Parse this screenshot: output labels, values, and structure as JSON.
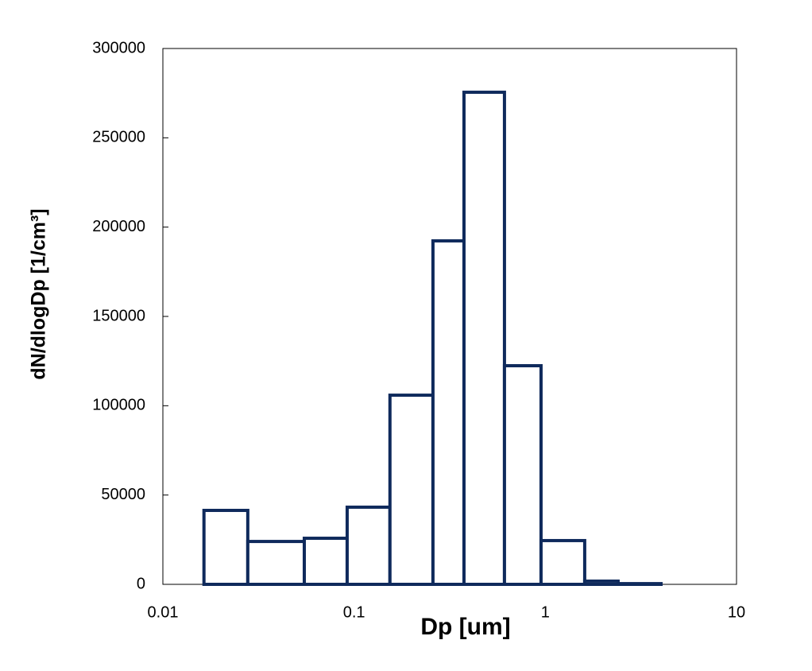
{
  "chart_data": {
    "type": "histogram",
    "x_label": "Dp [um]",
    "y_label": "dN/dlogDp  [1/cm³]",
    "bins": [
      0.01,
      0.0164,
      0.0278,
      0.0549,
      0.092,
      0.154,
      0.2585,
      0.3756,
      0.6115,
      0.95,
      1.607,
      2.403,
      4.03,
      10
    ],
    "values": [
      0,
      41400,
      24000,
      25800,
      43200,
      105900,
      192300,
      275500,
      122400,
      24500,
      1800,
      400,
      0
    ],
    "color": "#0f2a5c",
    "xlim": [
      0.01,
      10
    ],
    "xticks": [
      0.01,
      0.1,
      1,
      10
    ],
    "x_log": true,
    "ylim": [
      0,
      300000
    ],
    "yticks": [
      0,
      50000,
      100000,
      150000,
      200000,
      250000,
      300000
    ]
  }
}
